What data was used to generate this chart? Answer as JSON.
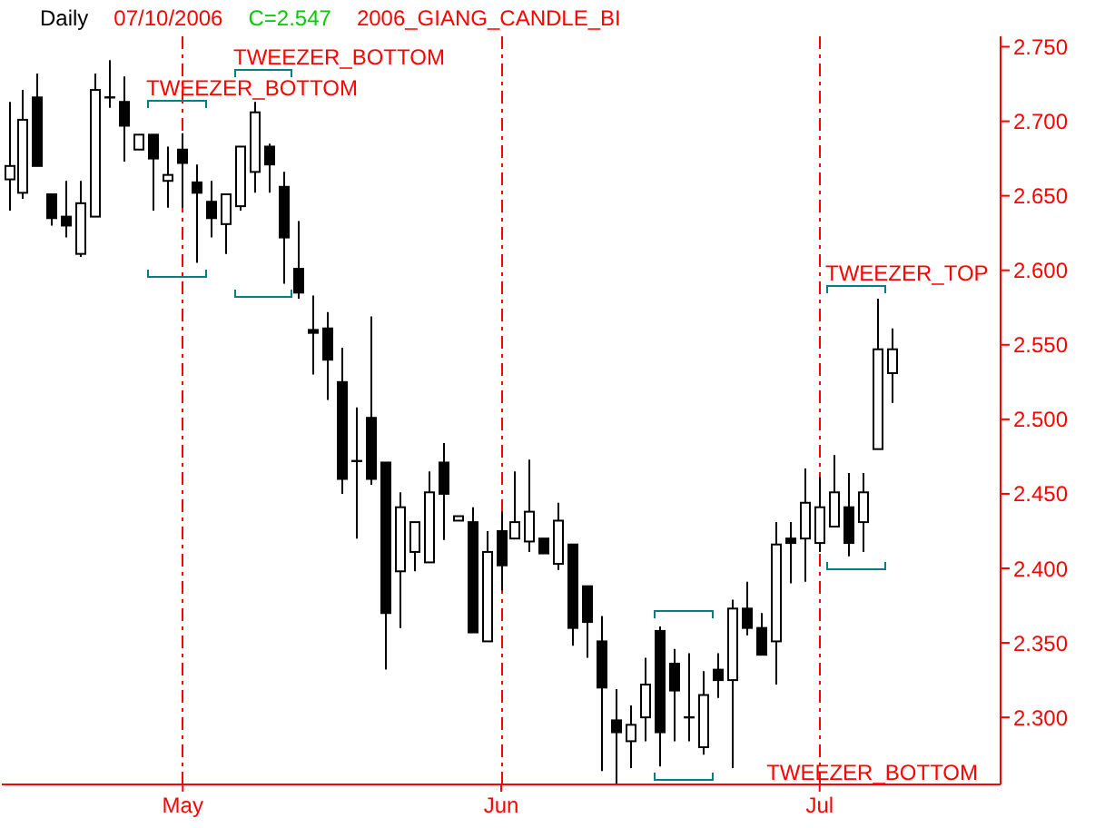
{
  "chart_data": {
    "type": "candlestick",
    "title": "Daily",
    "annotations": [
      "07/10/2006",
      "C=2.547",
      "2006_GIANG_CANDLE_BI",
      "TWEEZER_BOTTOM",
      "TWEEZER_BOTTOM",
      "TWEEZER_BOTTOM",
      "TWEEZER_TOP"
    ],
    "categories": [
      null,
      null,
      null,
      null,
      null,
      null,
      null,
      null,
      null,
      null,
      null,
      null,
      "May",
      null,
      null,
      null,
      null,
      null,
      null,
      null,
      null,
      null,
      null,
      null,
      null,
      null,
      null,
      null,
      null,
      null,
      null,
      null,
      null,
      null,
      "Jun",
      null,
      null,
      null,
      null,
      null,
      null,
      null,
      null,
      null,
      null,
      null,
      null,
      null,
      null,
      null,
      null,
      null,
      null,
      null,
      null,
      null,
      "Jul",
      null,
      null,
      null,
      null,
      null,
      null,
      null,
      null,
      null,
      null,
      null,
      null
    ],
    "ohlc": [
      [
        2.661,
        2.713,
        2.64,
        2.67
      ],
      [
        2.652,
        2.721,
        2.648,
        2.701
      ],
      [
        2.716,
        2.732,
        2.67,
        2.67
      ],
      [
        2.651,
        2.651,
        2.63,
        2.635
      ],
      [
        2.636,
        2.66,
        2.622,
        2.63
      ],
      [
        2.611,
        2.66,
        2.609,
        2.645
      ],
      [
        2.636,
        2.732,
        2.636,
        2.721
      ],
      [
        2.716,
        2.741,
        2.709,
        2.716
      ],
      [
        2.713,
        2.73,
        2.673,
        2.697
      ],
      [
        2.681,
        2.691,
        2.681,
        2.691
      ],
      [
        2.691,
        2.691,
        2.64,
        2.675
      ],
      [
        2.66,
        2.683,
        2.642,
        2.664
      ],
      [
        2.681,
        2.692,
        2.642,
        2.672
      ],
      [
        2.659,
        2.671,
        2.605,
        2.652
      ],
      [
        2.646,
        2.66,
        2.622,
        2.635
      ],
      [
        2.631,
        2.651,
        2.611,
        2.651
      ],
      [
        2.643,
        2.683,
        2.64,
        2.683
      ],
      [
        2.666,
        2.713,
        2.652,
        2.706
      ],
      [
        2.683,
        2.685,
        2.652,
        2.671
      ],
      [
        2.656,
        2.666,
        2.591,
        2.622
      ],
      [
        2.601,
        2.633,
        2.581,
        2.585
      ],
      [
        2.56,
        2.583,
        2.53,
        2.558
      ],
      [
        2.561,
        2.572,
        2.513,
        2.54
      ],
      [
        2.525,
        2.548,
        2.45,
        2.46
      ],
      [
        2.472,
        2.508,
        2.42,
        2.472
      ],
      [
        2.501,
        2.569,
        2.456,
        2.46
      ],
      [
        2.471,
        2.471,
        2.332,
        2.37
      ],
      [
        2.398,
        2.451,
        2.36,
        2.441
      ],
      [
        2.411,
        2.431,
        2.398,
        2.431
      ],
      [
        2.404,
        2.465,
        2.404,
        2.451
      ],
      [
        2.471,
        2.484,
        2.419,
        2.45
      ],
      [
        2.432,
        2.435,
        2.432,
        2.435
      ],
      [
        2.431,
        2.441,
        2.357,
        2.357
      ],
      [
        2.351,
        2.425,
        2.351,
        2.411
      ],
      [
        2.425,
        2.438,
        2.385,
        2.402
      ],
      [
        2.42,
        2.465,
        2.42,
        2.431
      ],
      [
        2.418,
        2.473,
        2.411,
        2.438
      ],
      [
        2.42,
        2.42,
        2.41,
        2.41
      ],
      [
        2.403,
        2.444,
        2.399,
        2.432
      ],
      [
        2.416,
        2.416,
        2.348,
        2.36
      ],
      [
        2.388,
        2.388,
        2.34,
        2.364
      ],
      [
        2.351,
        2.368,
        2.264,
        2.32
      ],
      [
        2.298,
        2.319,
        2.255,
        2.29
      ],
      [
        2.284,
        2.308,
        2.266,
        2.295
      ],
      [
        2.3,
        2.34,
        2.284,
        2.322
      ],
      [
        2.358,
        2.361,
        2.267,
        2.29
      ],
      [
        2.336,
        2.346,
        2.284,
        2.318
      ],
      [
        2.3,
        2.343,
        2.284,
        2.3
      ],
      [
        2.28,
        2.331,
        2.275,
        2.315
      ],
      [
        2.332,
        2.343,
        2.313,
        2.325
      ],
      [
        2.325,
        2.379,
        2.266,
        2.373
      ],
      [
        2.373,
        2.391,
        2.355,
        2.36
      ],
      [
        2.36,
        2.37,
        2.342,
        2.342
      ],
      [
        2.351,
        2.431,
        2.322,
        2.416
      ],
      [
        2.42,
        2.431,
        2.39,
        2.417
      ],
      [
        2.42,
        2.467,
        2.391,
        2.444
      ],
      [
        2.417,
        2.461,
        2.411,
        2.441
      ],
      [
        2.428,
        2.476,
        2.428,
        2.451
      ],
      [
        2.441,
        2.464,
        2.408,
        2.417
      ],
      [
        2.431,
        2.464,
        2.411,
        2.451
      ],
      [
        2.48,
        2.581,
        2.48,
        2.547
      ],
      [
        2.531,
        2.561,
        2.511,
        2.547
      ],
      null,
      null,
      null,
      null,
      null,
      null,
      null
    ],
    "color": "#000000",
    "ylim": [
      2.255,
      2.757
    ],
    "yticks": [
      {
        "value": 2.3,
        "label": "2.300"
      },
      {
        "value": 2.35,
        "label": "2.350"
      },
      {
        "value": 2.4,
        "label": "2.400"
      },
      {
        "value": 2.45,
        "label": "2.450"
      },
      {
        "value": 2.5,
        "label": "2.500"
      },
      {
        "value": 2.55,
        "label": "2.550"
      },
      {
        "value": 2.6,
        "label": "2.600"
      },
      {
        "value": 2.65,
        "label": "2.650"
      },
      {
        "value": 2.7,
        "label": "2.700"
      },
      {
        "value": 2.75,
        "label": "2.750"
      }
    ],
    "ref_lines": [
      {
        "axis": "x",
        "value": "May",
        "color": "#ff0000",
        "line_style": "dashed"
      },
      {
        "axis": "x",
        "value": "Jun",
        "color": "#ff0000",
        "line_style": "dashed"
      },
      {
        "axis": "x",
        "value": "Jul",
        "color": "#ff0000",
        "line_style": "dashed"
      }
    ]
  }
}
